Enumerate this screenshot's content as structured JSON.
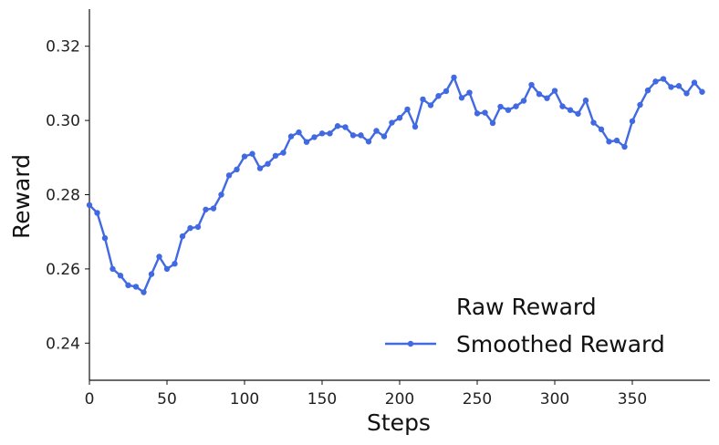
{
  "chart_data": {
    "type": "line",
    "title": "",
    "xlabel": "Steps",
    "ylabel": "Reward",
    "xlim": [
      0,
      400
    ],
    "ylim": [
      0.23,
      0.33
    ],
    "xticks": [
      0,
      50,
      100,
      150,
      200,
      250,
      300,
      350
    ],
    "yticks": [
      0.24,
      0.26,
      0.28,
      0.3,
      0.32
    ],
    "xtick_labels": [
      "0",
      "50",
      "100",
      "150",
      "200",
      "250",
      "300",
      "350"
    ],
    "ytick_labels": [
      "0.24",
      "0.26",
      "0.28",
      "0.30",
      "0.32"
    ],
    "grid": false,
    "legend_position": "lower-right",
    "legend": {
      "entries": [
        {
          "label": "Raw Reward",
          "marker": "none"
        },
        {
          "label": "Smoothed Reward",
          "marker": "line-dot"
        }
      ]
    },
    "series": [
      {
        "name": "Smoothed Reward",
        "color": "#4169e1",
        "x": [
          0,
          5,
          10,
          15,
          20,
          25,
          30,
          35,
          40,
          45,
          50,
          55,
          60,
          65,
          70,
          75,
          80,
          85,
          90,
          95,
          100,
          105,
          110,
          115,
          120,
          125,
          130,
          135,
          140,
          145,
          150,
          155,
          160,
          165,
          170,
          175,
          180,
          185,
          190,
          195,
          200,
          205,
          210,
          215,
          220,
          225,
          230,
          235,
          240,
          245,
          250,
          255,
          260,
          265,
          270,
          275,
          280,
          285,
          290,
          295,
          300,
          305,
          310,
          315,
          320,
          325,
          330,
          335,
          340,
          345,
          350,
          355,
          360,
          365,
          370,
          375,
          380,
          385,
          390,
          395
        ],
        "y": [
          0.2772,
          0.2751,
          0.2683,
          0.26,
          0.2582,
          0.2556,
          0.2552,
          0.2537,
          0.2586,
          0.2633,
          0.26,
          0.2614,
          0.2688,
          0.271,
          0.2713,
          0.276,
          0.2763,
          0.28,
          0.2852,
          0.2868,
          0.2903,
          0.291,
          0.2871,
          0.2883,
          0.2905,
          0.2913,
          0.2957,
          0.2968,
          0.2942,
          0.2955,
          0.2965,
          0.2965,
          0.2985,
          0.2982,
          0.296,
          0.296,
          0.2943,
          0.2972,
          0.2957,
          0.2994,
          0.3007,
          0.303,
          0.2983,
          0.3057,
          0.3041,
          0.3066,
          0.3079,
          0.3116,
          0.3061,
          0.3075,
          0.3019,
          0.3021,
          0.2993,
          0.3037,
          0.3028,
          0.3038,
          0.3053,
          0.3096,
          0.3071,
          0.306,
          0.308,
          0.3038,
          0.3028,
          0.3018,
          0.3054,
          0.2994,
          0.2976,
          0.2943,
          0.2946,
          0.2929,
          0.2998,
          0.3042,
          0.3081,
          0.3105,
          0.3112,
          0.309,
          0.3093,
          0.3073,
          0.3102,
          0.3077
        ]
      }
    ]
  }
}
